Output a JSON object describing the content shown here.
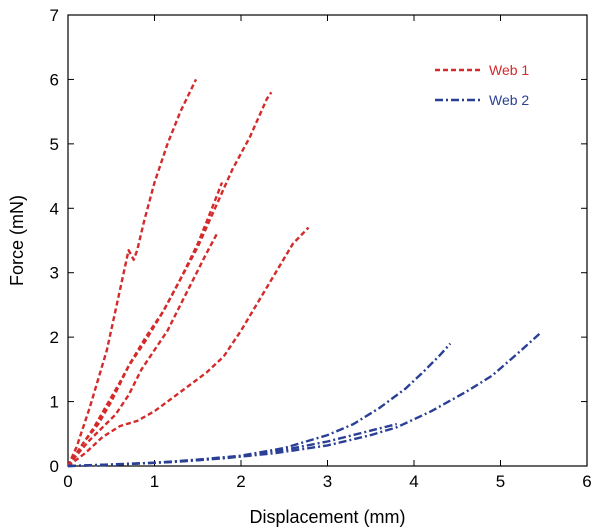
{
  "chart_data": {
    "type": "line",
    "xlabel": "Displacement (mm)",
    "ylabel": "Force (mN)",
    "xlim": [
      0,
      6
    ],
    "ylim": [
      0,
      7
    ],
    "xticks": [
      "0",
      "1",
      "2",
      "3",
      "4",
      "5",
      "6"
    ],
    "yticks": [
      "0",
      "1",
      "2",
      "3",
      "4",
      "5",
      "6",
      "7"
    ],
    "grid": false,
    "legend_position": "top-right",
    "legend": [
      {
        "label": "Web 1",
        "color": "#d42a2a",
        "style": "dashed"
      },
      {
        "label": "Web 2",
        "color": "#2a3f96",
        "style": "dash-dot"
      }
    ],
    "series": [
      {
        "group": "Web 1",
        "color": "#d42a2a",
        "x": [
          0.0,
          0.1,
          0.25,
          0.45,
          0.7,
          0.76,
          0.8,
          0.88,
          1.0,
          1.15,
          1.3,
          1.48
        ],
        "y": [
          0.0,
          0.3,
          0.9,
          1.8,
          3.35,
          3.2,
          3.35,
          3.8,
          4.4,
          5.0,
          5.5,
          6.0
        ]
      },
      {
        "group": "Web 1",
        "color": "#d42a2a",
        "x": [
          0.0,
          0.15,
          0.3,
          0.45,
          0.6,
          0.72,
          0.9,
          1.1,
          1.3,
          1.5,
          1.7,
          1.9,
          2.1,
          2.3,
          2.35
        ],
        "y": [
          0.0,
          0.3,
          0.6,
          0.95,
          1.3,
          1.6,
          2.0,
          2.4,
          2.9,
          3.4,
          4.0,
          4.6,
          5.1,
          5.7,
          5.8
        ]
      },
      {
        "group": "Web 1",
        "color": "#d42a2a",
        "x": [
          0.0,
          0.1,
          0.2,
          0.35,
          0.5,
          0.7,
          0.9,
          1.1,
          1.3,
          1.5,
          1.65,
          1.78
        ],
        "y": [
          0.0,
          0.2,
          0.4,
          0.65,
          1.0,
          1.55,
          1.95,
          2.4,
          2.9,
          3.45,
          3.95,
          4.4
        ]
      },
      {
        "group": "Web 1",
        "color": "#d42a2a",
        "x": [
          0.0,
          0.12,
          0.25,
          0.4,
          0.55,
          0.7,
          0.85,
          1.0,
          1.15,
          1.3,
          1.45,
          1.6,
          1.72
        ],
        "y": [
          0.0,
          0.2,
          0.4,
          0.6,
          0.8,
          1.1,
          1.5,
          1.8,
          2.1,
          2.5,
          2.9,
          3.3,
          3.6
        ]
      },
      {
        "group": "Web 1",
        "color": "#d42a2a",
        "x": [
          0.0,
          0.2,
          0.4,
          0.6,
          0.8,
          1.0,
          1.2,
          1.4,
          1.6,
          1.8,
          2.0,
          2.2,
          2.4,
          2.6,
          2.78
        ],
        "y": [
          0.0,
          0.2,
          0.45,
          0.62,
          0.7,
          0.85,
          1.05,
          1.25,
          1.45,
          1.7,
          2.1,
          2.55,
          3.0,
          3.45,
          3.7
        ]
      },
      {
        "group": "Web 2",
        "color": "#2a3f96",
        "x": [
          0.0,
          0.5,
          1.0,
          1.5,
          2.0,
          2.5,
          3.0,
          3.3,
          3.6,
          3.9,
          4.1,
          4.3,
          4.42
        ],
        "y": [
          0.0,
          0.02,
          0.05,
          0.1,
          0.16,
          0.28,
          0.48,
          0.65,
          0.9,
          1.2,
          1.45,
          1.72,
          1.9
        ]
      },
      {
        "group": "Web 2",
        "color": "#2a3f96",
        "x": [
          0.0,
          0.6,
          1.2,
          1.8,
          2.4,
          3.0,
          3.5,
          3.8,
          4.2,
          4.6,
          4.9,
          5.2,
          5.45
        ],
        "y": [
          0.0,
          0.03,
          0.06,
          0.12,
          0.2,
          0.32,
          0.48,
          0.6,
          0.85,
          1.15,
          1.4,
          1.75,
          2.05
        ]
      },
      {
        "group": "Web 2",
        "color": "#2a3f96",
        "x": [
          0.0,
          0.5,
          1.0,
          1.5,
          2.0,
          2.5,
          3.0,
          3.5,
          3.8
        ],
        "y": [
          0.0,
          0.02,
          0.05,
          0.09,
          0.15,
          0.25,
          0.38,
          0.55,
          0.65
        ]
      }
    ]
  }
}
